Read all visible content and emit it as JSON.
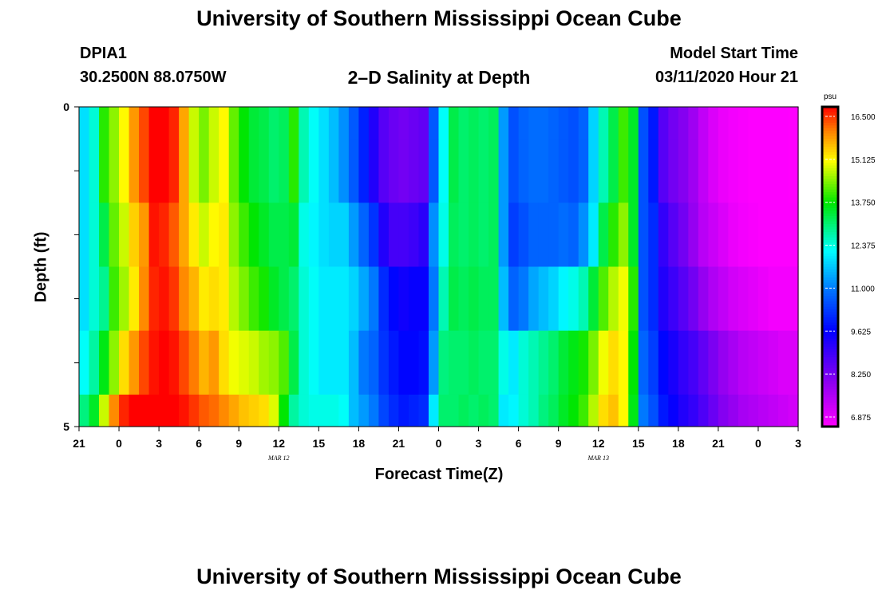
{
  "header": {
    "title_top": "University of Southern Mississippi Ocean Cube",
    "title_bottom": "University of Southern Mississippi Ocean Cube",
    "station_id": "DPIA1",
    "station_coords": "30.2500N 88.0750W",
    "chart_title": "2–D Salinity at Depth",
    "model_start_label": "Model Start Time",
    "model_start_value": "03/11/2020 Hour 21"
  },
  "chart_data": {
    "type": "heatmap",
    "title": "2–D Salinity at Depth",
    "xlabel": "Forecast Time(Z)",
    "ylabel": "Depth (ft)",
    "x_start_hour": 21,
    "x_step_hours": 1,
    "x_tick_labels": [
      "21",
      "0",
      "3",
      "6",
      "9",
      "12",
      "15",
      "18",
      "21",
      "0",
      "3",
      "6",
      "9",
      "12",
      "15",
      "18",
      "21",
      "0",
      "3"
    ],
    "x_date_labels": [
      {
        "text": "MAR 12",
        "hour": 12
      },
      {
        "text": "MAR 13",
        "hour": 12
      }
    ],
    "y_tick_labels": [
      "0",
      "5"
    ],
    "y_range": [
      0,
      5
    ],
    "depth_levels": [
      0,
      1,
      2,
      3,
      4,
      5
    ],
    "colorbar": {
      "unit": "psu",
      "min": 6.875,
      "max": 16.5,
      "tick_labels": [
        "16.500",
        "15.125",
        "13.750",
        "12.375",
        "11.000",
        "9.625",
        "8.250",
        "6.875"
      ]
    },
    "salinity_psu": [
      [
        11.9,
        12.4,
        13.8,
        14.3,
        14.9,
        15.6,
        16.1,
        16.6,
        16.5,
        16.3,
        15.5,
        14.6,
        14.2,
        14.6,
        14.9,
        14.1,
        13.6,
        13.3,
        13.2,
        13.0,
        13.1,
        13.8,
        12.6,
        12.2,
        11.9,
        11.6,
        11.2,
        10.7,
        10.1,
        9.4,
        8.8,
        8.6,
        8.5,
        8.6,
        8.7,
        10.7,
        12.2,
        13.2,
        13.0,
        13.1,
        13.0,
        13.1,
        11.3,
        10.6,
        10.8,
        10.9,
        10.9,
        10.8,
        10.7,
        10.6,
        10.8,
        11.8,
        12.6,
        13.2,
        13.9,
        13.4,
        10.6,
        10.0,
        8.8,
        8.5,
        8.3,
        8.0,
        7.6,
        7.3,
        7.1,
        7.0,
        6.95,
        6.9,
        6.9,
        6.9,
        6.9,
        6.88
      ],
      [
        11.9,
        12.4,
        13.8,
        14.3,
        14.9,
        15.6,
        16.1,
        16.6,
        16.5,
        16.3,
        15.5,
        14.6,
        14.2,
        14.6,
        14.9,
        14.1,
        13.6,
        13.3,
        13.2,
        13.0,
        13.1,
        13.8,
        12.6,
        12.2,
        11.9,
        11.6,
        11.2,
        10.7,
        10.1,
        9.4,
        8.8,
        8.6,
        8.5,
        8.6,
        8.7,
        10.7,
        12.2,
        13.2,
        13.0,
        13.1,
        13.0,
        13.1,
        11.3,
        10.6,
        10.8,
        10.9,
        10.9,
        10.8,
        10.7,
        10.6,
        10.8,
        11.8,
        12.6,
        13.2,
        13.9,
        13.4,
        10.6,
        10.0,
        8.8,
        8.5,
        8.3,
        8.0,
        7.6,
        7.3,
        7.1,
        7.0,
        6.95,
        6.9,
        6.9,
        6.9,
        6.9,
        6.88
      ],
      [
        11.9,
        12.4,
        13.2,
        14.1,
        14.6,
        15.2,
        15.6,
        16.4,
        16.3,
        16.0,
        15.5,
        15.0,
        14.6,
        14.9,
        15.0,
        14.3,
        13.9,
        13.6,
        13.4,
        13.2,
        13.2,
        13.3,
        12.3,
        12.1,
        11.9,
        11.8,
        11.8,
        11.3,
        10.8,
        10.3,
        9.4,
        9.0,
        9.0,
        9.1,
        9.3,
        11.2,
        12.3,
        13.1,
        13.0,
        13.1,
        13.0,
        13.1,
        11.3,
        10.4,
        10.6,
        10.8,
        10.8,
        10.8,
        10.9,
        10.8,
        11.2,
        12.0,
        13.2,
        13.8,
        14.3,
        13.4,
        10.6,
        10.2,
        9.2,
        8.8,
        8.5,
        8.1,
        7.7,
        7.5,
        7.3,
        7.1,
        7.0,
        6.95,
        6.9,
        6.9,
        6.9,
        6.9
      ],
      [
        11.9,
        12.4,
        12.8,
        13.9,
        14.4,
        15.0,
        15.7,
        16.3,
        16.4,
        16.2,
        15.7,
        15.4,
        15.0,
        15.1,
        15.0,
        14.5,
        14.2,
        13.9,
        13.7,
        13.4,
        13.2,
        13.0,
        12.4,
        12.2,
        12.0,
        12.0,
        12.0,
        11.8,
        11.4,
        11.0,
        10.2,
        9.8,
        9.6,
        9.7,
        9.7,
        11.0,
        12.6,
        13.2,
        13.1,
        13.2,
        13.1,
        13.1,
        11.6,
        10.8,
        11.0,
        11.4,
        11.6,
        11.8,
        12.1,
        12.3,
        12.6,
        13.3,
        14.0,
        14.5,
        14.8,
        13.8,
        10.6,
        10.2,
        9.4,
        9.1,
        8.8,
        8.5,
        8.1,
        7.8,
        7.6,
        7.4,
        7.3,
        7.2,
        7.1,
        7.0,
        7.0,
        7.0
      ],
      [
        12.2,
        12.7,
        13.5,
        14.3,
        15.1,
        15.6,
        16.1,
        16.4,
        16.5,
        16.4,
        16.1,
        15.8,
        15.4,
        15.6,
        15.1,
        14.8,
        14.7,
        14.6,
        14.4,
        14.3,
        14.0,
        13.2,
        12.4,
        12.2,
        12.0,
        12.0,
        12.0,
        11.6,
        11.0,
        10.8,
        10.3,
        10.0,
        9.8,
        9.8,
        9.9,
        11.3,
        12.9,
        13.0,
        13.0,
        13.1,
        13.0,
        13.0,
        12.3,
        12.0,
        12.4,
        12.6,
        12.8,
        13.0,
        13.3,
        13.5,
        13.7,
        14.2,
        14.8,
        15.1,
        14.9,
        13.6,
        10.8,
        10.4,
        9.8,
        9.5,
        9.2,
        9.0,
        8.7,
        8.4,
        8.1,
        7.9,
        7.7,
        7.6,
        7.5,
        7.4,
        7.3,
        7.3
      ],
      [
        12.9,
        13.4,
        14.6,
        15.7,
        16.3,
        16.5,
        16.7,
        16.7,
        16.7,
        16.6,
        16.4,
        16.2,
        16.0,
        15.9,
        15.7,
        15.5,
        15.3,
        15.2,
        15.1,
        14.7,
        13.6,
        12.7,
        12.4,
        12.3,
        12.3,
        12.3,
        12.2,
        11.6,
        11.3,
        11.0,
        10.5,
        10.2,
        10.0,
        10.1,
        10.2,
        12.0,
        13.0,
        13.0,
        13.1,
        13.0,
        13.1,
        13.0,
        12.0,
        12.1,
        12.4,
        12.6,
        12.9,
        13.1,
        13.4,
        13.6,
        13.9,
        14.5,
        15.1,
        15.3,
        14.9,
        13.5,
        11.0,
        10.6,
        10.0,
        9.7,
        9.4,
        9.2,
        8.9,
        8.6,
        8.3,
        8.1,
        7.9,
        7.8,
        7.7,
        7.6,
        7.5,
        7.4
      ]
    ]
  }
}
